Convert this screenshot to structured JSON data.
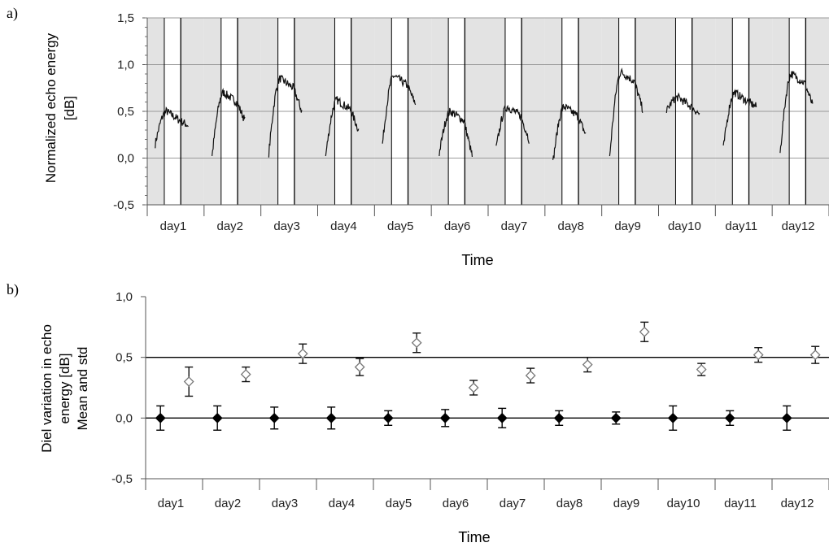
{
  "chart_data": [
    {
      "panel": "a)",
      "type": "line",
      "xlabel": "Time",
      "ylabel_lines": [
        "Normalized echo energy",
        "[dB]"
      ],
      "ylim": [
        -0.5,
        1.5
      ],
      "yticks": [
        "-0,5",
        "0,0",
        "0,5",
        "1,0",
        "1,5"
      ],
      "categories": [
        "day1",
        "day2",
        "day3",
        "day4",
        "day5",
        "day6",
        "day7",
        "day8",
        "day9",
        "day10",
        "day11",
        "day12"
      ],
      "grid": true,
      "shading": "grey night bands, white day bands",
      "series": [
        {
          "day_curves": [
            {
              "day": "day1",
              "start": 0.15,
              "peak": 0.5,
              "end": 0.35
            },
            {
              "day": "day2",
              "start": 0.02,
              "peak": 0.7,
              "end": 0.4
            },
            {
              "day": "day3",
              "start": 0.05,
              "peak": 0.85,
              "end": 0.5
            },
            {
              "day": "day4",
              "start": 0.02,
              "peak": 0.62,
              "end": 0.3
            },
            {
              "day": "day5",
              "start": 0.15,
              "peak": 0.88,
              "end": 0.58
            },
            {
              "day": "day6",
              "start": 0.05,
              "peak": 0.5,
              "end": 0.02
            },
            {
              "day": "day7",
              "start": 0.1,
              "peak": 0.55,
              "end": 0.2
            },
            {
              "day": "day8",
              "start": -0.05,
              "peak": 0.55,
              "end": 0.25
            },
            {
              "day": "day9",
              "start": 0.02,
              "peak": 0.92,
              "end": 0.52
            },
            {
              "day": "day10",
              "start": 0.5,
              "peak": 0.65,
              "end": 0.47
            },
            {
              "day": "day11",
              "start": 0.1,
              "peak": 0.7,
              "end": 0.55
            },
            {
              "day": "day12",
              "start": 0.05,
              "peak": 0.9,
              "end": 0.55
            }
          ]
        }
      ]
    },
    {
      "panel": "b)",
      "type": "scatter",
      "xlabel": "Time",
      "ylabel_lines": [
        "Diel variation in echo",
        "energy [dB]",
        "Mean and std"
      ],
      "ylim": [
        -0.5,
        1.0
      ],
      "yticks": [
        "-0,5",
        "0,0",
        "0,5",
        "1,0"
      ],
      "categories": [
        "day1",
        "day2",
        "day3",
        "day4",
        "day5",
        "day6",
        "day7",
        "day8",
        "day9",
        "day10",
        "day11",
        "day12"
      ],
      "reference_lines": [
        0.0,
        0.5
      ],
      "series": [
        {
          "marker": "filled diamond",
          "color": "#000000",
          "mean": [
            0.0,
            0.0,
            0.0,
            0.0,
            0.0,
            0.0,
            0.0,
            0.0,
            0.0,
            0.0,
            0.0,
            0.0
          ],
          "std": [
            0.1,
            0.1,
            0.09,
            0.09,
            0.06,
            0.07,
            0.08,
            0.06,
            0.05,
            0.1,
            0.06,
            0.1
          ]
        },
        {
          "marker": "open diamond",
          "color": "#777777",
          "mean": [
            0.3,
            0.36,
            0.53,
            0.42,
            0.62,
            0.25,
            0.35,
            0.44,
            0.71,
            0.4,
            0.52,
            0.52
          ],
          "std": [
            0.12,
            0.06,
            0.08,
            0.07,
            0.08,
            0.06,
            0.06,
            0.06,
            0.08,
            0.05,
            0.06,
            0.07
          ]
        }
      ]
    }
  ]
}
